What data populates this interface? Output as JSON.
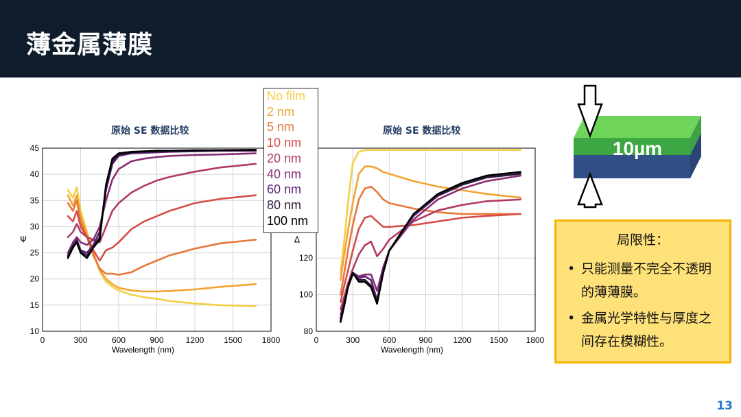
{
  "slide": {
    "title": "薄金属薄膜",
    "page_number": "13"
  },
  "colors": {
    "header_bg": "#0e1c2c",
    "chart_title": "#1f3a5f",
    "limit_bg": "#ffe17a",
    "limit_border": "#f5b400",
    "page_number": "#2a78c8"
  },
  "legend": [
    {
      "label": "No film",
      "color": "#f3cf45"
    },
    {
      "label": "2 nm",
      "color": "#f2a330"
    },
    {
      "label": "5 nm",
      "color": "#e8763a"
    },
    {
      "label": "10 nm",
      "color": "#d44d48"
    },
    {
      "label": "20 nm",
      "color": "#b13a60"
    },
    {
      "label": "40 nm",
      "color": "#8a2c72"
    },
    {
      "label": "60 nm",
      "color": "#5b2173"
    },
    {
      "label": "80 nm",
      "color": "#2c1a3c"
    },
    {
      "label": "100 nm",
      "color": "#000000"
    }
  ],
  "block": {
    "label": "10µm",
    "top_color": "#4db848",
    "bottom_color": "#2f4f86"
  },
  "limitations": {
    "title": "局限性：",
    "bullet": "•",
    "items": [
      "只能测量不完全不透明的薄薄膜。",
      "金属光学特性与厚度之间存在模糊性。"
    ]
  },
  "chart_data": [
    {
      "type": "line",
      "title": "原始 SE 数据比较",
      "xlabel": "Wavelength (nm)",
      "ylabel": "Ψ",
      "xlim": [
        0,
        1800
      ],
      "ylim": [
        10,
        45
      ],
      "xticks": [
        0,
        300,
        600,
        900,
        1200,
        1500,
        1800
      ],
      "yticks": [
        10,
        15,
        20,
        25,
        30,
        35,
        40,
        45
      ],
      "grid": true,
      "legend_position": "top-right",
      "series": [
        {
          "name": "No film",
          "color": "#f3cf45",
          "x": [
            200,
            240,
            270,
            300,
            350,
            400,
            450,
            500,
            550,
            600,
            700,
            800,
            900,
            1000,
            1200,
            1400,
            1680
          ],
          "y": [
            37,
            35.5,
            37.5,
            33,
            29,
            25,
            21.5,
            19.5,
            18.5,
            17.8,
            17,
            16.5,
            16.2,
            15.8,
            15.3,
            15,
            14.8
          ]
        },
        {
          "name": "2 nm",
          "color": "#f2a330",
          "x": [
            200,
            240,
            270,
            300,
            350,
            400,
            450,
            500,
            550,
            600,
            700,
            800,
            900,
            1000,
            1200,
            1400,
            1680
          ],
          "y": [
            36,
            34,
            36,
            32,
            28.5,
            25,
            21.8,
            20,
            19,
            18.3,
            17.8,
            17.6,
            17.6,
            17.7,
            18,
            18.5,
            19
          ]
        },
        {
          "name": "5 nm",
          "color": "#e8763a",
          "x": [
            200,
            240,
            270,
            300,
            350,
            400,
            450,
            500,
            550,
            600,
            700,
            800,
            900,
            1000,
            1200,
            1400,
            1680
          ],
          "y": [
            34.5,
            33,
            35,
            31,
            28,
            24.5,
            22,
            21,
            21,
            20.8,
            21.3,
            22.5,
            23.5,
            24.5,
            25.8,
            26.8,
            27.5
          ]
        },
        {
          "name": "10 nm",
          "color": "#d44d48",
          "x": [
            200,
            240,
            270,
            300,
            350,
            400,
            450,
            500,
            550,
            600,
            700,
            800,
            900,
            1000,
            1200,
            1400,
            1680
          ],
          "y": [
            32,
            31,
            33,
            30,
            28,
            25.5,
            23.5,
            25.5,
            26,
            27,
            29.5,
            31,
            32,
            33,
            34.5,
            35.3,
            36
          ]
        },
        {
          "name": "20 nm",
          "color": "#b13a60",
          "x": [
            200,
            240,
            270,
            300,
            350,
            400,
            450,
            500,
            550,
            600,
            700,
            800,
            900,
            1000,
            1200,
            1400,
            1680
          ],
          "y": [
            28,
            29,
            30.5,
            29,
            28,
            27.5,
            27,
            30,
            33,
            34.5,
            36.5,
            37.8,
            38.8,
            39.5,
            40.5,
            41.3,
            42
          ]
        },
        {
          "name": "40 nm",
          "color": "#8a2c72",
          "x": [
            200,
            240,
            270,
            300,
            350,
            400,
            450,
            500,
            550,
            600,
            700,
            800,
            900,
            1000,
            1200,
            1400,
            1680
          ],
          "y": [
            25,
            27,
            28,
            27,
            26.5,
            27.5,
            30,
            35,
            39,
            41,
            42.5,
            43,
            43.3,
            43.5,
            43.7,
            43.8,
            44
          ]
        },
        {
          "name": "60 nm",
          "color": "#5b2173",
          "x": [
            200,
            240,
            270,
            300,
            350,
            400,
            450,
            500,
            550,
            600,
            700,
            800,
            900,
            1000,
            1200,
            1400,
            1680
          ],
          "y": [
            24.5,
            26.5,
            27.5,
            25.5,
            25,
            26.5,
            29,
            37,
            42,
            43.5,
            44,
            44.1,
            44.2,
            44.3,
            44.4,
            44.5,
            44.5
          ]
        },
        {
          "name": "80 nm",
          "color": "#2c1a3c",
          "x": [
            200,
            240,
            270,
            300,
            350,
            400,
            450,
            500,
            550,
            600,
            700,
            800,
            900,
            1000,
            1200,
            1400,
            1680
          ],
          "y": [
            24.3,
            26.3,
            27.2,
            25.2,
            24.5,
            26,
            28,
            37.5,
            42.5,
            43.8,
            44.2,
            44.3,
            44.4,
            44.5,
            44.5,
            44.6,
            44.6
          ]
        },
        {
          "name": "100 nm",
          "color": "#000000",
          "x": [
            200,
            240,
            270,
            300,
            350,
            400,
            450,
            500,
            550,
            600,
            700,
            800,
            900,
            1000,
            1200,
            1400,
            1680
          ],
          "y": [
            24,
            26,
            27,
            25,
            24,
            26,
            27.5,
            38,
            43,
            44,
            44.3,
            44.4,
            44.5,
            44.5,
            44.6,
            44.6,
            44.7
          ]
        }
      ]
    },
    {
      "type": "line",
      "title": "原始 SE 数据比较",
      "xlabel": "Wavelength (nm)",
      "ylabel": "Δ",
      "xlim": [
        0,
        1800
      ],
      "ylim": [
        80,
        180
      ],
      "xticks": [
        0,
        300,
        600,
        900,
        1200,
        1500,
        1800
      ],
      "yticks": [
        80,
        100,
        120
      ],
      "grid": true,
      "series": [
        {
          "name": "No film",
          "color": "#f3cf45",
          "x": [
            200,
            230,
            260,
            300,
            350,
            400,
            450,
            500,
            600,
            800,
            1000,
            1200,
            1400,
            1680
          ],
          "y": [
            112,
            130,
            150,
            172,
            178,
            179,
            179,
            179,
            179,
            179,
            179,
            179,
            179,
            179
          ]
        },
        {
          "name": "2 nm",
          "color": "#f2a330",
          "x": [
            200,
            230,
            260,
            300,
            350,
            400,
            450,
            500,
            550,
            600,
            800,
            1000,
            1200,
            1400,
            1680
          ],
          "y": [
            108,
            122,
            135,
            150,
            166,
            170,
            170,
            169,
            167,
            166,
            162,
            159,
            157,
            155,
            153
          ]
        },
        {
          "name": "5 nm",
          "color": "#e8763a",
          "x": [
            200,
            230,
            260,
            300,
            350,
            400,
            450,
            500,
            550,
            600,
            800,
            1000,
            1200,
            1400,
            1680
          ],
          "y": [
            100,
            112,
            124,
            138,
            152,
            158,
            159,
            156,
            152,
            150,
            147,
            145,
            144,
            144,
            144
          ]
        },
        {
          "name": "10 nm",
          "color": "#d44d48",
          "x": [
            200,
            230,
            260,
            300,
            350,
            400,
            450,
            500,
            550,
            600,
            800,
            1000,
            1200,
            1400,
            1680
          ],
          "y": [
            96,
            105,
            113,
            124,
            136,
            142,
            143,
            140,
            137,
            137,
            138,
            140,
            142,
            143,
            144
          ]
        },
        {
          "name": "20 nm",
          "color": "#b13a60",
          "x": [
            200,
            230,
            260,
            300,
            350,
            400,
            450,
            500,
            550,
            600,
            800,
            1000,
            1200,
            1400,
            1680
          ],
          "y": [
            92,
            99,
            106,
            114,
            122,
            127,
            129,
            121,
            125,
            130,
            140,
            146,
            149,
            151,
            152
          ]
        },
        {
          "name": "40 nm",
          "color": "#8a2c72",
          "x": [
            200,
            230,
            260,
            300,
            350,
            400,
            450,
            500,
            550,
            600,
            800,
            1000,
            1200,
            1400,
            1680
          ],
          "y": [
            89,
            96,
            104,
            112,
            110,
            111,
            111,
            102,
            115,
            124,
            141,
            152,
            158,
            162,
            165
          ]
        },
        {
          "name": "60 nm",
          "color": "#5b2173",
          "x": [
            200,
            230,
            260,
            300,
            350,
            400,
            450,
            500,
            550,
            600,
            800,
            1000,
            1200,
            1400,
            1680
          ],
          "y": [
            87,
            96,
            104,
            111,
            109,
            110,
            108,
            97,
            113,
            124,
            143,
            154,
            160,
            164,
            166
          ]
        },
        {
          "name": "80 nm",
          "color": "#2c1a3c",
          "x": [
            200,
            230,
            260,
            300,
            350,
            400,
            450,
            500,
            550,
            600,
            800,
            1000,
            1200,
            1400,
            1680
          ],
          "y": [
            86,
            95,
            104,
            112,
            108,
            108,
            105,
            96,
            112,
            124,
            144,
            154,
            160,
            164,
            166
          ]
        },
        {
          "name": "100 nm",
          "color": "#000000",
          "x": [
            200,
            230,
            260,
            300,
            350,
            400,
            450,
            500,
            550,
            600,
            800,
            1000,
            1200,
            1400,
            1680
          ],
          "y": [
            85,
            94,
            104,
            112,
            107,
            107,
            104,
            95,
            112,
            124,
            144,
            155,
            161,
            165,
            167
          ]
        }
      ]
    }
  ]
}
